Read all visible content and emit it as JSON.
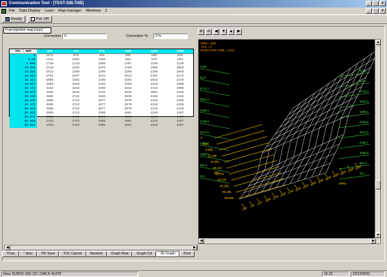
{
  "window": {
    "title": "Communication Tool - [TEST-336.TAB]"
  },
  "window_buttons": [
    "_",
    "□",
    "×"
  ],
  "doc_buttons": [
    "_",
    "□",
    "×"
  ],
  "menu": [
    "File",
    "Data Display",
    "Learn",
    "Map manager",
    "Windows",
    "2"
  ],
  "toolbar": {
    "ready_label": "Ready",
    "pst_label": "Pst: Off"
  },
  "doc": {
    "title": "Fuel injection map [user]",
    "correction_label": "Correction",
    "correction_value": "0",
    "correction_pct_label": "Correction %",
    "correction_pct_value": "0  %"
  },
  "table": {
    "corner": "TPS \\ RPM",
    "columns": [
      "500",
      "750",
      "875",
      "1000",
      "1250",
      "1500"
    ],
    "rows": [
      {
        "h": "0",
        "v": [
          "1211",
          "970",
          "484",
          "560",
          "560",
          "529"
        ]
      },
      {
        "h": "6.25",
        "v": [
          "1211",
          "1025",
          "1335",
          "653",
          "670",
          "653"
        ]
      },
      {
        "h": "8.906",
        "v": [
          "1738",
          "1118",
          "1056",
          "1397",
          "1180",
          "1149"
        ]
      },
      {
        "h": "10.938",
        "v": [
          "2110",
          "1645",
          "1676",
          "1769",
          "1986",
          "1583"
        ]
      },
      {
        "h": "13.281",
        "v": [
          "2513",
          "2389",
          "2296",
          "2265",
          "2389",
          "2048"
        ]
      },
      {
        "h": "15.616",
        "v": [
          "2761",
          "2637",
          "2544",
          "2513",
          "2451",
          "2172"
        ]
      },
      {
        "h": "18.141",
        "v": [
          "3009",
          "3102",
          "3195",
          "3102",
          "2916",
          "2575"
        ]
      },
      {
        "h": "23.047",
        "v": [
          "3009",
          "3164",
          "3195",
          "3226",
          "3226",
          "3350"
        ]
      },
      {
        "h": "28.172",
        "v": [
          "3102",
          "3226",
          "3350",
          "3443",
          "3722",
          "3908"
        ]
      },
      {
        "h": "35.078",
        "v": [
          "3288",
          "3536",
          "3722",
          "3815",
          "4001",
          "4249"
        ]
      },
      {
        "h": "39.158",
        "v": [
          "3505",
          "3722",
          "3846",
          "3939",
          "4156",
          "4342"
        ]
      },
      {
        "h": "46.188",
        "v": [
          "3505",
          "3722",
          "3877",
          "3970",
          "4218",
          "4435"
        ]
      },
      {
        "h": "51.172",
        "v": [
          "3505",
          "3722",
          "3877",
          "3970",
          "4218",
          "4435"
        ]
      },
      {
        "h": "60.156",
        "v": [
          "3505",
          "3722",
          "3877",
          "3970",
          "4218",
          "4435"
        ]
      },
      {
        "h": "65.922",
        "v": [
          "3505",
          "3753",
          "3908",
          "4001",
          "4249",
          "4497"
        ]
      },
      {
        "h": "80.078",
        "v": [
          "3753",
          "3753",
          "3908",
          "4001",
          "4249",
          "4497"
        ]
      },
      {
        "h": "89.938",
        "v": [
          "3753",
          "3753",
          "3908",
          "4001",
          "4249",
          "4497"
        ]
      },
      {
        "h": "96.922",
        "v": [
          "3753",
          "3753",
          "3908",
          "4001",
          "4249",
          "4497"
        ]
      }
    ]
  },
  "graph": {
    "info": [
      "RPM = 500",
      "TPS = 0",
      "INJECTION TIME = 1211"
    ],
    "z_left": [
      "7235",
      "6217",
      "5742.3",
      "5064.3",
      "4368.4",
      "3708.9",
      "3027.6",
      "2386.7",
      "1668.9",
      "981.5",
      "312"
    ],
    "z_right": [
      "7235",
      "6217",
      "5742.3",
      "5064.3",
      "4368.4",
      "3708.9",
      "3027.6",
      "2386.7",
      "1668.9",
      "981.5",
      "312"
    ],
    "tps_ticks": [
      "89.938",
      "60.156",
      "46.188",
      "35.078",
      "28.172",
      "18.141",
      "13.281",
      "10.938",
      "8.906",
      "6.25",
      "0"
    ],
    "tps_label": "TPS",
    "rpm_ticks": [
      "500",
      "750",
      "875",
      "1000",
      "1250",
      "1500",
      "1750",
      "2000",
      "2500",
      "3000",
      "3500",
      "4000",
      "4500",
      "5000",
      "5500",
      "6000"
    ],
    "rpm_label": "RPM"
  },
  "tabs": [
    "'V'esc",
    "'' desc",
    "'F8' Save",
    "'F11' Cancel",
    "Numeric",
    "Graph Row",
    "Graph Col",
    "3D Graph",
    "Print"
  ],
  "status": {
    "left": "Now: EURO1-336 | EC-CAN A: 8x378",
    "time": "16:15",
    "date": "20/12/2002"
  },
  "colors": {
    "cyan": "#00e5ee",
    "axis_yellow": "#ffd200",
    "axis_green": "#40e040",
    "info_orange": "#ff9900"
  }
}
